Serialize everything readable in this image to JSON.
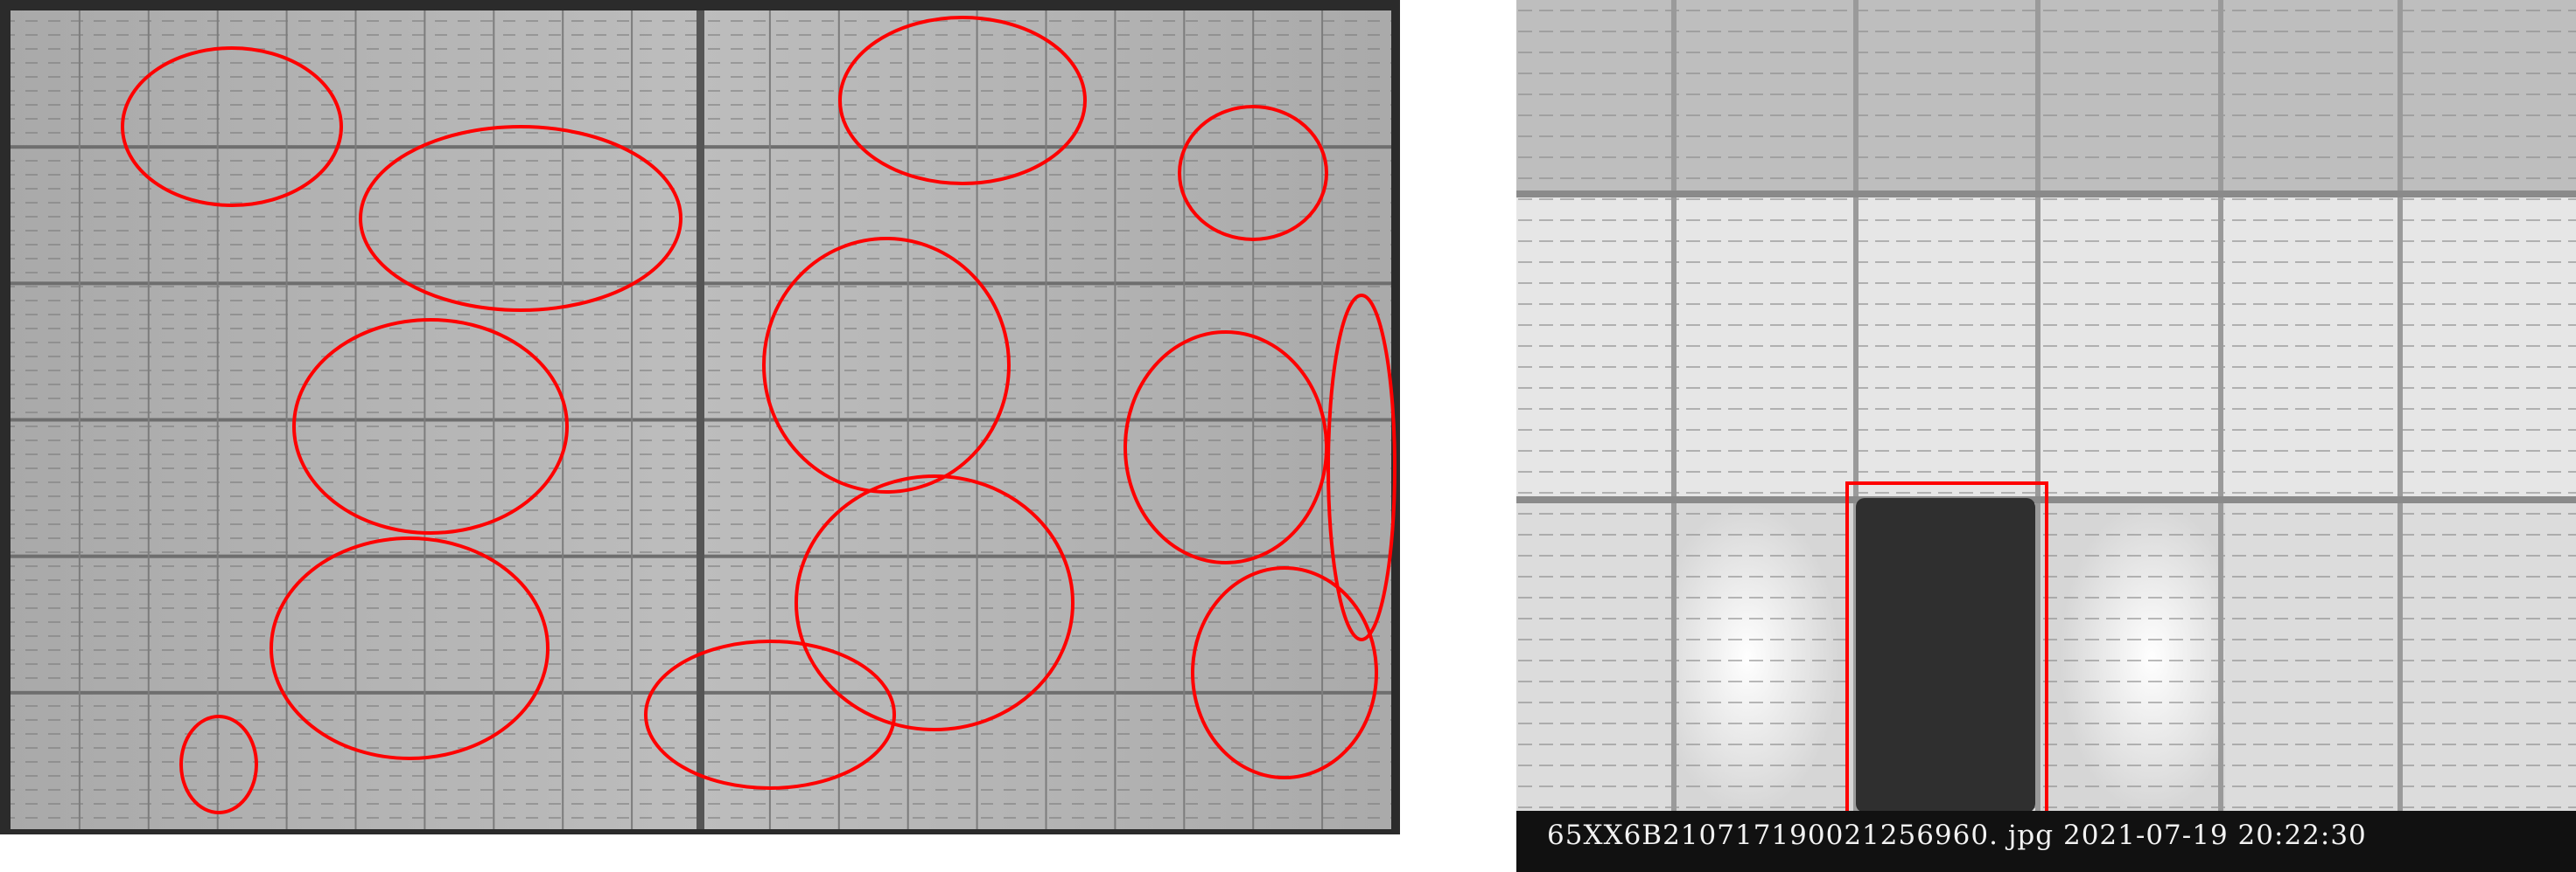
{
  "left_image": {
    "description_icon": "el-panel-photo",
    "annotation_color": "#ff0000"
  },
  "right_image": {
    "description_icon": "el-closeup-photo",
    "annotation_color": "#ff0000",
    "caption": "65XX6B210717190021256960. jpg  2021-07-19  20:22:30"
  }
}
